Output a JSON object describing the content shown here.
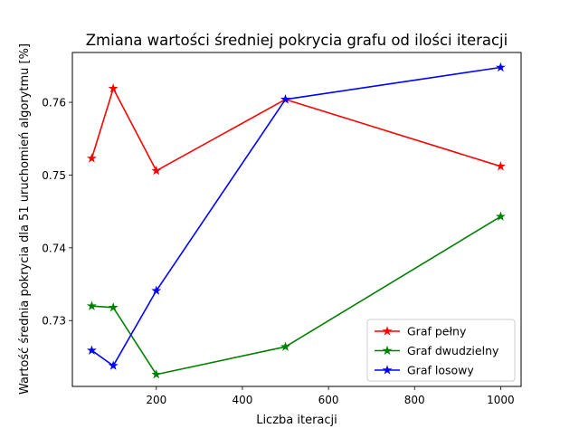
{
  "chart_data": {
    "type": "line",
    "title": "Zmiana wartości średniej pokrycia grafu od ilości iteracji",
    "xlabel": "Liczba iteracji",
    "ylabel": "Wartość średnia pokrycia dla 51 uruchomień algorytmu [%]",
    "xlim": [
      5,
      1047.5
    ],
    "ylim": [
      0.72095,
      0.76685
    ],
    "x_ticks": [
      {
        "value": 200,
        "label": "200"
      },
      {
        "value": 400,
        "label": "400"
      },
      {
        "value": 600,
        "label": "600"
      },
      {
        "value": 800,
        "label": "800"
      },
      {
        "value": 1000,
        "label": "1000"
      }
    ],
    "y_ticks": [
      {
        "value": 0.73,
        "label": "0.73"
      },
      {
        "value": 0.74,
        "label": "0.74"
      },
      {
        "value": 0.75,
        "label": "0.75"
      },
      {
        "value": 0.76,
        "label": "0.76"
      }
    ],
    "grid": false,
    "legend_position": "lower-right",
    "marker": "star",
    "series": [
      {
        "name": "Graf pełny",
        "color": "#ff0000",
        "points": [
          [
            50,
            0.7523
          ],
          [
            100,
            0.7619
          ],
          [
            200,
            0.7506
          ],
          [
            500,
            0.7604
          ],
          [
            1000,
            0.7512
          ]
        ]
      },
      {
        "name": "Graf dwudzielny",
        "color": "#008000",
        "points": [
          [
            50,
            0.732
          ],
          [
            100,
            0.7318
          ],
          [
            200,
            0.7226
          ],
          [
            500,
            0.7264
          ],
          [
            1000,
            0.7443
          ]
        ]
      },
      {
        "name": "Graf losowy",
        "color": "#0000ff",
        "points": [
          [
            50,
            0.7259
          ],
          [
            100,
            0.7238
          ],
          [
            200,
            0.7341
          ],
          [
            500,
            0.7604
          ],
          [
            1000,
            0.7648
          ]
        ]
      }
    ]
  }
}
